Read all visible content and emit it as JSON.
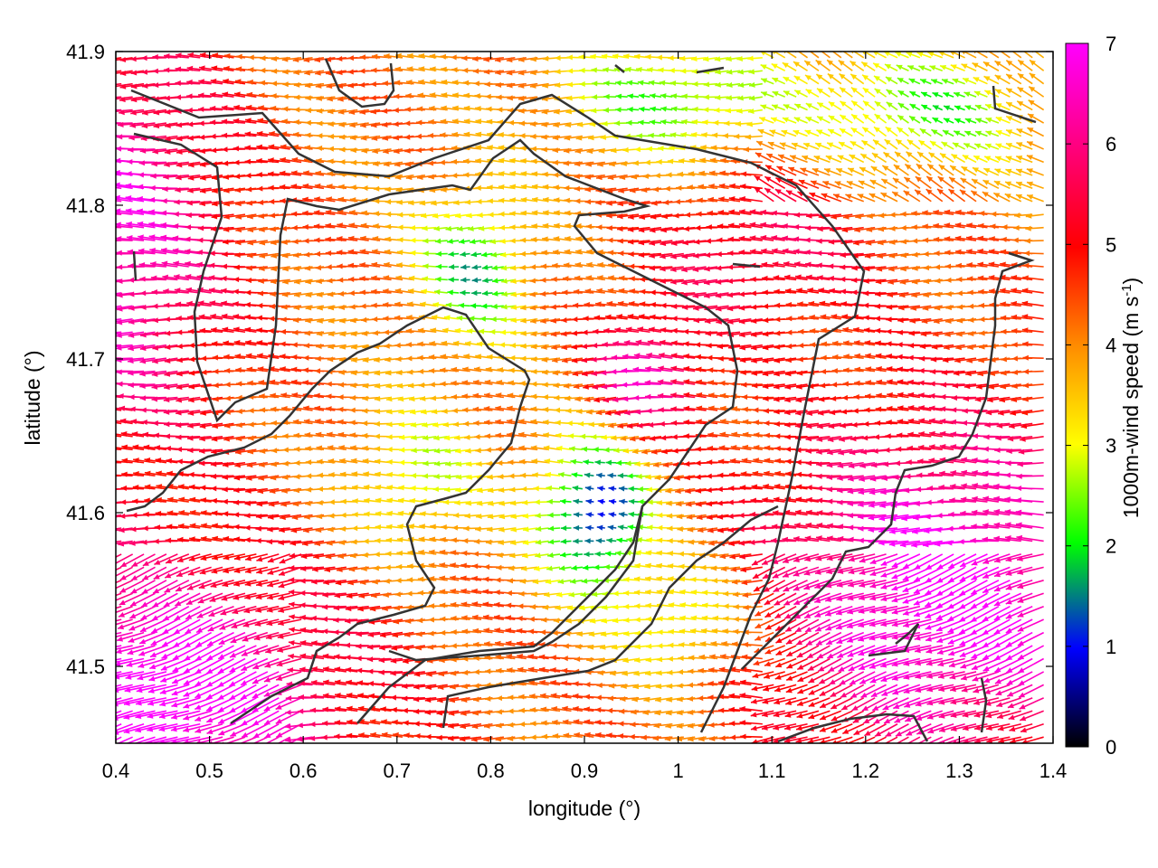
{
  "chart_data": {
    "type": "vector-field",
    "xlabel": "longitude (°)",
    "ylabel": "latitude (°)",
    "xlim": [
      0.4,
      1.4
    ],
    "ylim": [
      41.45,
      41.9
    ],
    "xticks": [
      "0.4",
      "0.5",
      "0.6",
      "0.7",
      "0.8",
      "0.9",
      "1",
      "1.1",
      "1.2",
      "1.3",
      "1.4"
    ],
    "yticks": [
      "41.5",
      "41.6",
      "41.7",
      "41.8",
      "41.9"
    ],
    "colorbar": {
      "label_main": "1000m-wind speed (m s",
      "label_sup": "-1",
      "label_close": ")",
      "range": [
        0,
        7
      ],
      "ticks": [
        "0",
        "1",
        "2",
        "3",
        "4",
        "5",
        "6",
        "7"
      ],
      "palette": [
        "#000000",
        "#0000ff",
        "#00ff00",
        "#ffff00",
        "#ff8c00",
        "#ff0000",
        "#ff00ff"
      ]
    },
    "wind_regions": [
      {
        "region": "west (lon 0.4-0.55)",
        "speed": 6.5,
        "direction": "westward"
      },
      {
        "region": "southwest",
        "speed": 7.0,
        "direction": "west-northwestward"
      },
      {
        "region": "north-central",
        "speed": 4.0,
        "direction": "westward"
      },
      {
        "region": "central valley (lon 0.85-0.95, lat 41.55-41.65)",
        "speed": 0.8,
        "direction": "variable"
      },
      {
        "region": "southeast",
        "speed": 7.0,
        "direction": "west-northwestward"
      },
      {
        "region": "northeast",
        "speed": 2.5,
        "direction": "southwestward"
      }
    ],
    "grid": false
  }
}
